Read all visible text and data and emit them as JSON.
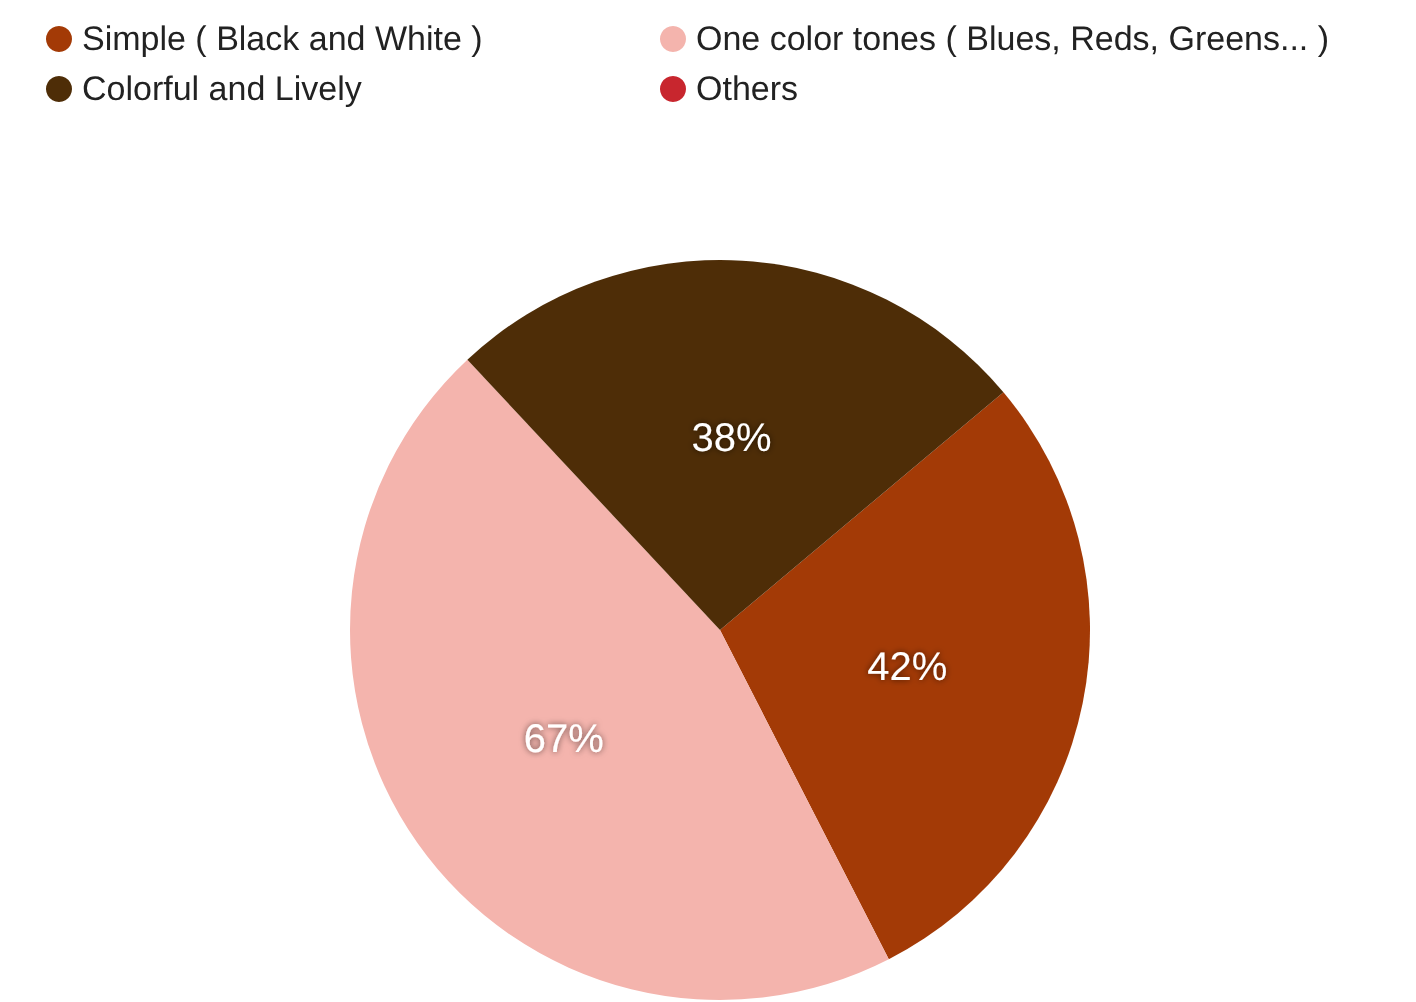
{
  "chart_data": {
    "type": "pie",
    "categories": [
      "Simple ( Black and White )",
      "One color tones ( Blues, Reds, Greens... )",
      "Colorful and Lively",
      "Others"
    ],
    "values": [
      42,
      67,
      38,
      0
    ],
    "colors": [
      "#a33a06",
      "#f4b4ad",
      "#4e2d07",
      "#c8262e"
    ],
    "value_labels": [
      "42%",
      "67%",
      "38%",
      null
    ],
    "legend": "top left"
  }
}
